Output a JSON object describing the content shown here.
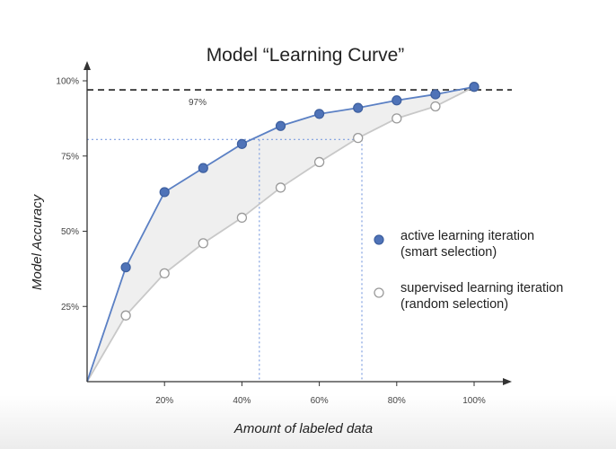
{
  "chart_data": {
    "type": "line",
    "title": "Model “Learning Curve”",
    "xlabel": "Amount of labeled data",
    "ylabel": "Model Accuracy",
    "xlim": [
      0,
      1.05
    ],
    "ylim": [
      0,
      1.0
    ],
    "x_ticks": [
      0.2,
      0.4,
      0.6,
      0.8,
      1.0
    ],
    "x_tick_labels": [
      "20%",
      "40%",
      "60%",
      "80%",
      "100%"
    ],
    "y_ticks": [
      0.25,
      0.5,
      0.75,
      1.0
    ],
    "y_tick_labels": [
      "25%",
      "50%",
      "75%",
      "100%"
    ],
    "grid": false,
    "legend_position": "right",
    "x": [
      0.1,
      0.2,
      0.3,
      0.4,
      0.5,
      0.6,
      0.7,
      0.8,
      0.9,
      1.0
    ],
    "series": [
      {
        "name": "active learning iteration\n(smart selection)",
        "legend_lines": [
          "active learning iteration",
          "(smart selection)"
        ],
        "values": [
          0.38,
          0.63,
          0.71,
          0.79,
          0.85,
          0.89,
          0.91,
          0.935,
          0.955,
          0.98
        ],
        "color": "#5b80c4",
        "marker": "filled"
      },
      {
        "name": "supervised learning iteration\n(random selection)",
        "legend_lines": [
          "supervised learning iteration",
          "(random selection)"
        ],
        "values": [
          0.22,
          0.36,
          0.46,
          0.545,
          0.645,
          0.73,
          0.81,
          0.875,
          0.915,
          0.98
        ],
        "color": "#c8c8c8",
        "marker": "hollow"
      }
    ],
    "annotations": {
      "reference_line_value": 0.97,
      "reference_line_label": "97%",
      "comparison_accuracy": 0.805,
      "comparison_x_active": 0.445,
      "comparison_x_random": 0.71
    },
    "colors": {
      "active": "#5b80c4",
      "active_fill": "#4f73b8",
      "random": "#c8c8c8",
      "shade": "#efefef",
      "guide": "#7f9fe0",
      "axis": "#333333",
      "reference": "#222222"
    }
  }
}
